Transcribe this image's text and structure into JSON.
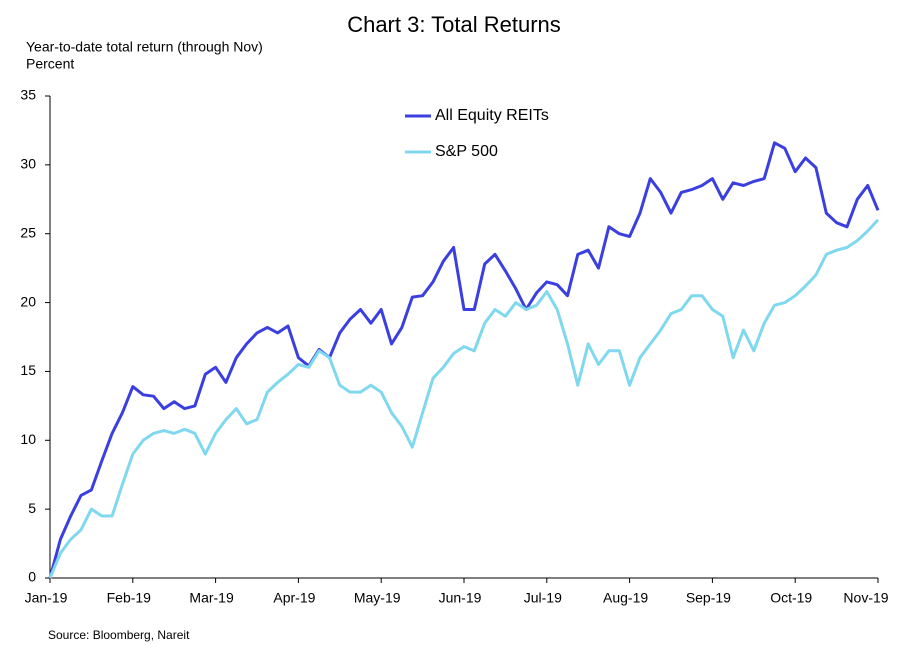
{
  "chart_data": {
    "type": "line",
    "title": "Chart 3: Total Returns",
    "y_label": [
      "Year-to-date total return (through Nov)",
      "Percent"
    ],
    "source": "Source: Bloomberg, Nareit",
    "legend": "upper center",
    "categories": [
      "Jan-19",
      null,
      null,
      null,
      null,
      null,
      null,
      null,
      "Feb-19",
      null,
      null,
      null,
      null,
      null,
      null,
      null,
      "Mar-19",
      null,
      null,
      null,
      null,
      null,
      null,
      null,
      "Apr-19",
      null,
      null,
      null,
      null,
      null,
      null,
      null,
      "May-19",
      null,
      null,
      null,
      null,
      null,
      null,
      null,
      "Jun-19",
      null,
      null,
      null,
      null,
      null,
      null,
      null,
      "Jul-19",
      null,
      null,
      null,
      null,
      null,
      null,
      null,
      "Aug-19",
      null,
      null,
      null,
      null,
      null,
      null,
      null,
      "Sep-19",
      null,
      null,
      null,
      null,
      null,
      null,
      null,
      "Oct-19",
      null,
      null,
      null,
      null,
      null,
      null,
      null,
      "Nov-19"
    ],
    "series": [
      {
        "name": "All Equity REITs",
        "color": "#3b3fe0",
        "values": [
          0,
          2.8,
          4.5,
          6.0,
          6.4,
          8.5,
          10.5,
          12.0,
          13.9,
          13.3,
          13.2,
          12.3,
          12.8,
          12.3,
          12.5,
          14.8,
          15.3,
          14.2,
          16.0,
          17.0,
          17.8,
          18.2,
          17.8,
          18.3,
          16.0,
          15.4,
          16.6,
          16.0,
          17.8,
          18.8,
          19.5,
          18.5,
          19.5,
          17.0,
          18.2,
          20.4,
          20.5,
          21.5,
          23.0,
          24.0,
          19.5,
          19.5,
          22.8,
          23.5,
          22.3,
          21.0,
          19.5,
          20.7,
          21.5,
          21.3,
          20.5,
          23.5,
          23.8,
          22.5,
          25.5,
          25.0,
          24.8,
          26.5,
          29.0,
          28.0,
          26.5,
          28.0,
          28.2,
          28.5,
          29.0,
          27.5,
          28.7,
          28.5,
          28.8,
          29.0,
          31.6,
          31.2,
          29.5,
          30.5,
          29.8,
          26.5,
          25.8,
          25.5,
          27.5,
          28.5,
          26.7
        ]
      },
      {
        "name": "S&P 500",
        "color": "#80d8ef",
        "values": [
          0,
          1.8,
          2.8,
          3.5,
          5.0,
          4.5,
          4.5,
          6.8,
          9.0,
          10.0,
          10.5,
          10.7,
          10.5,
          10.8,
          10.5,
          9.0,
          10.5,
          11.5,
          12.3,
          11.2,
          11.5,
          13.5,
          14.2,
          14.8,
          15.5,
          15.3,
          16.5,
          16.0,
          14.0,
          13.5,
          13.5,
          14.0,
          13.5,
          12.0,
          11.0,
          9.5,
          12.0,
          14.5,
          15.3,
          16.3,
          16.8,
          16.5,
          18.5,
          19.5,
          19.0,
          20.0,
          19.5,
          19.8,
          20.8,
          19.5,
          17.0,
          14.0,
          17.0,
          15.5,
          16.5,
          16.5,
          14.0,
          16.0,
          17.0,
          18.0,
          19.2,
          19.5,
          20.5,
          20.5,
          19.5,
          19.0,
          16.0,
          18.0,
          16.5,
          18.5,
          19.8,
          20.0,
          20.5,
          21.2,
          22.0,
          23.5,
          23.8,
          24.0,
          24.5,
          25.2,
          26.0
        ]
      }
    ],
    "ylim": [
      0,
      35
    ],
    "yticks": [
      0,
      5,
      10,
      15,
      20,
      25,
      30,
      35
    ]
  }
}
